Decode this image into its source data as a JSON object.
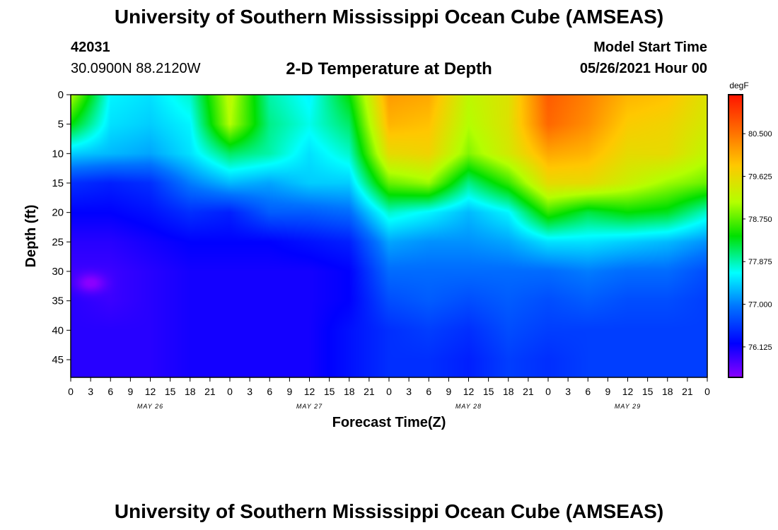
{
  "header": {
    "title": "University of Southern Mississippi Ocean Cube (AMSEAS)",
    "station_id": "42031",
    "coords": "30.0900N  88.2120W",
    "chart_title": "2-D Temperature at Depth",
    "start_label": "Model Start Time",
    "start_value": "05/26/2021 Hour 00"
  },
  "footer": {
    "title": "University of Southern Mississippi Ocean Cube (AMSEAS)"
  },
  "chart_data": {
    "type": "heatmap",
    "title": "2-D Temperature at Depth",
    "xlabel": "Forecast Time(Z)",
    "ylabel": "Depth (ft)",
    "colorbar_unit": "degF",
    "x_range_hours": [
      0,
      96
    ],
    "y_range_ft": [
      0,
      48
    ],
    "x_ticks": [
      {
        "h": 0,
        "label": "0"
      },
      {
        "h": 3,
        "label": "3"
      },
      {
        "h": 6,
        "label": "6"
      },
      {
        "h": 9,
        "label": "9"
      },
      {
        "h": 12,
        "label": "12"
      },
      {
        "h": 15,
        "label": "15"
      },
      {
        "h": 18,
        "label": "18"
      },
      {
        "h": 21,
        "label": "21"
      },
      {
        "h": 24,
        "label": "0"
      },
      {
        "h": 27,
        "label": "3"
      },
      {
        "h": 30,
        "label": "6"
      },
      {
        "h": 33,
        "label": "9"
      },
      {
        "h": 36,
        "label": "12"
      },
      {
        "h": 39,
        "label": "15"
      },
      {
        "h": 42,
        "label": "18"
      },
      {
        "h": 45,
        "label": "21"
      },
      {
        "h": 48,
        "label": "0"
      },
      {
        "h": 51,
        "label": "3"
      },
      {
        "h": 54,
        "label": "6"
      },
      {
        "h": 57,
        "label": "9"
      },
      {
        "h": 60,
        "label": "12"
      },
      {
        "h": 63,
        "label": "15"
      },
      {
        "h": 66,
        "label": "18"
      },
      {
        "h": 69,
        "label": "21"
      },
      {
        "h": 72,
        "label": "0"
      },
      {
        "h": 75,
        "label": "3"
      },
      {
        "h": 78,
        "label": "6"
      },
      {
        "h": 81,
        "label": "9"
      },
      {
        "h": 84,
        "label": "12"
      },
      {
        "h": 87,
        "label": "15"
      },
      {
        "h": 90,
        "label": "18"
      },
      {
        "h": 93,
        "label": "21"
      },
      {
        "h": 96,
        "label": "0"
      }
    ],
    "date_labels": [
      {
        "h": 12,
        "label": "MAY 26"
      },
      {
        "h": 36,
        "label": "MAY 27"
      },
      {
        "h": 60,
        "label": "MAY 28"
      },
      {
        "h": 84,
        "label": "MAY 29"
      }
    ],
    "y_ticks": [
      0,
      5,
      10,
      15,
      20,
      25,
      30,
      35,
      40,
      45
    ],
    "colorbar": {
      "range": [
        75.5,
        81.3
      ],
      "labels": [
        "80.500",
        "79.625",
        "78.750",
        "77.875",
        "77.000",
        "76.125"
      ],
      "label_values": [
        80.5,
        79.625,
        78.75,
        77.875,
        77.0,
        76.125
      ]
    },
    "depth_levels_ft": [
      0,
      5,
      10,
      15,
      20,
      25,
      30,
      35,
      40,
      45,
      48
    ],
    "times_hours": [
      0,
      6,
      12,
      18,
      24,
      30,
      36,
      42,
      48,
      54,
      60,
      66,
      72,
      78,
      84,
      90,
      96
    ],
    "temperature_degF": [
      [
        79.1,
        77.6,
        77.5,
        77.8,
        79.2,
        77.9,
        77.6,
        78.4,
        80.2,
        80.1,
        79.2,
        79.5,
        80.7,
        80.4,
        80.0,
        79.9,
        79.5
      ],
      [
        78.4,
        77.5,
        77.4,
        77.6,
        79.1,
        78.0,
        77.7,
        78.1,
        80.0,
        79.9,
        79.1,
        79.5,
        80.6,
        80.3,
        79.8,
        79.7,
        79.4
      ],
      [
        77.4,
        77.3,
        77.2,
        77.5,
        78.1,
        77.9,
        77.5,
        77.8,
        79.6,
        79.7,
        78.9,
        79.4,
        80.1,
        80.0,
        79.6,
        79.6,
        79.2
      ],
      [
        76.5,
        76.4,
        76.5,
        77.0,
        77.3,
        77.2,
        77.4,
        77.4,
        78.8,
        79.0,
        78.0,
        78.6,
        79.6,
        79.6,
        79.3,
        79.0,
        78.8
      ],
      [
        76.2,
        76.2,
        76.3,
        76.5,
        76.4,
        76.8,
        76.8,
        76.9,
        77.8,
        77.6,
        77.3,
        77.6,
        78.6,
        78.2,
        78.4,
        78.3,
        77.8
      ],
      [
        76.0,
        76.0,
        76.1,
        76.2,
        76.2,
        76.2,
        76.3,
        76.4,
        77.2,
        77.1,
        77.1,
        77.2,
        77.5,
        77.5,
        77.4,
        77.3,
        77.1
      ],
      [
        75.9,
        75.9,
        76.0,
        76.1,
        76.1,
        76.1,
        76.1,
        76.2,
        76.9,
        76.9,
        76.9,
        76.9,
        76.9,
        77.0,
        76.9,
        76.9,
        76.7
      ],
      [
        76.0,
        75.9,
        76.0,
        76.1,
        76.1,
        76.1,
        76.1,
        76.2,
        76.7,
        76.8,
        76.7,
        76.8,
        76.7,
        76.8,
        76.7,
        76.7,
        76.6
      ],
      [
        76.0,
        76.0,
        76.0,
        76.1,
        76.1,
        76.1,
        76.1,
        76.3,
        76.5,
        76.6,
        76.5,
        76.7,
        76.6,
        76.6,
        76.6,
        76.6,
        76.6
      ],
      [
        76.0,
        76.0,
        76.0,
        76.1,
        76.1,
        76.1,
        76.1,
        76.3,
        76.5,
        76.5,
        76.4,
        76.6,
        76.5,
        76.6,
        76.6,
        76.6,
        76.6
      ],
      [
        76.0,
        76.0,
        76.0,
        76.1,
        76.1,
        76.1,
        76.1,
        76.3,
        76.5,
        76.5,
        76.4,
        76.6,
        76.5,
        76.6,
        76.6,
        76.6,
        76.6
      ]
    ],
    "annotations": [
      {
        "label": "local minimum (~75.6 degF)",
        "time_h": 3,
        "depth_ft": 32
      }
    ]
  }
}
